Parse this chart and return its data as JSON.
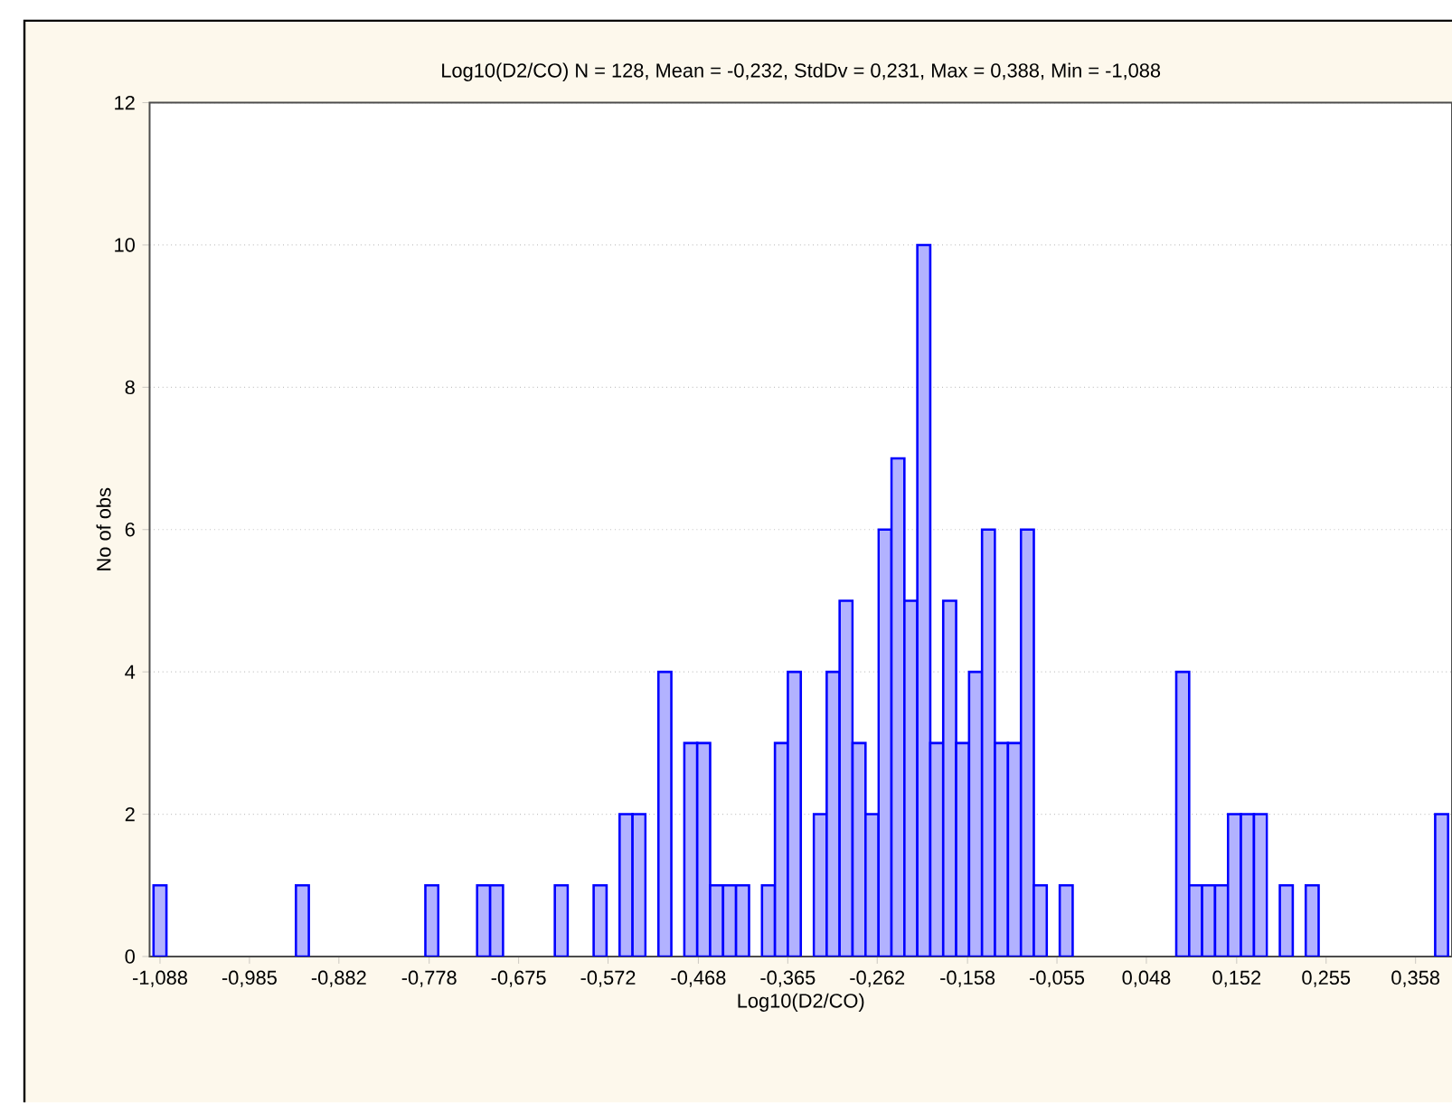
{
  "chart_data": {
    "type": "histogram",
    "title": "Log10(D2/CO)    N = 128, Mean = -0,232, StdDv = 0,231, Max = 0,388, Min = -1,088",
    "xlabel": "Log10(D2/CO)",
    "ylabel": "No of obs",
    "color": "#0000ff",
    "bins": [
      -1.0955,
      -1.0806,
      -1.0657,
      -1.0508,
      -1.0359,
      -1.021,
      -1.006,
      -0.9911,
      -0.9762,
      -0.9613,
      -0.9464,
      -0.9315,
      -0.9166,
      -0.9017,
      -0.8868,
      -0.8719,
      -0.8569,
      -0.842,
      -0.8271,
      -0.8122,
      -0.7973,
      -0.7824,
      -0.7675,
      -0.7526,
      -0.7377,
      -0.7228,
      -0.7078,
      -0.6929,
      -0.678,
      -0.6631,
      -0.6482,
      -0.6333,
      -0.6184,
      -0.6035,
      -0.5886,
      -0.5737,
      -0.5587,
      -0.5438,
      -0.5289,
      -0.514,
      -0.4991,
      -0.4842,
      -0.4693,
      -0.4544,
      -0.4395,
      -0.4246,
      -0.4096,
      -0.3947,
      -0.3798,
      -0.3649,
      -0.35,
      -0.3351,
      -0.3202,
      -0.3053,
      -0.2904,
      -0.2755,
      -0.2605,
      -0.2456,
      -0.2307,
      -0.2158,
      -0.2009,
      -0.186,
      -0.1711,
      -0.1562,
      -0.1413,
      -0.1264,
      -0.1114,
      -0.0965,
      -0.0816,
      -0.0667,
      -0.0518,
      -0.0369,
      -0.022,
      -0.0071,
      0.0078,
      0.0228,
      0.0377,
      0.0526,
      0.0675,
      0.0824,
      0.0973,
      0.1122,
      0.1271,
      0.142,
      0.1569,
      0.1719,
      0.1868,
      0.2017,
      0.2166,
      0.2315,
      0.2464,
      0.2613,
      0.2762,
      0.2911,
      0.306,
      0.321,
      0.3359,
      0.3508,
      0.3657,
      0.3806,
      0.3955
    ],
    "values": [
      1,
      0,
      0,
      0,
      0,
      0,
      0,
      0,
      0,
      0,
      0,
      1,
      0,
      0,
      0,
      0,
      0,
      0,
      0,
      0,
      0,
      1,
      0,
      0,
      0,
      1,
      1,
      0,
      0,
      0,
      0,
      1,
      0,
      0,
      1,
      0,
      2,
      2,
      0,
      4,
      0,
      3,
      3,
      1,
      1,
      1,
      0,
      1,
      3,
      4,
      0,
      2,
      4,
      5,
      3,
      2,
      6,
      7,
      5,
      10,
      3,
      5,
      3,
      4,
      6,
      3,
      3,
      6,
      1,
      0,
      1,
      0,
      0,
      0,
      0,
      0,
      0,
      0,
      0,
      4,
      1,
      1,
      1,
      2,
      2,
      2,
      0,
      1,
      0,
      1,
      0,
      0,
      0,
      0,
      0,
      0,
      0,
      0,
      0,
      2
    ],
    "xlim": [
      -1.1,
      0.4
    ],
    "ylim": [
      0,
      12
    ],
    "xticks": [
      {
        "value": -1.088,
        "label": "-1,088"
      },
      {
        "value": -0.985,
        "label": "-0,985"
      },
      {
        "value": -0.882,
        "label": "-0,882"
      },
      {
        "value": -0.778,
        "label": "-0,778"
      },
      {
        "value": -0.675,
        "label": "-0,675"
      },
      {
        "value": -0.572,
        "label": "-0,572"
      },
      {
        "value": -0.468,
        "label": "-0,468"
      },
      {
        "value": -0.365,
        "label": "-0,365"
      },
      {
        "value": -0.262,
        "label": "-0,262"
      },
      {
        "value": -0.158,
        "label": "-0,158"
      },
      {
        "value": -0.055,
        "label": "-0,055"
      },
      {
        "value": 0.048,
        "label": "0,048"
      },
      {
        "value": 0.152,
        "label": "0,152"
      },
      {
        "value": 0.255,
        "label": "0,255"
      },
      {
        "value": 0.358,
        "label": "0,358"
      }
    ],
    "yticks": [
      0,
      2,
      4,
      6,
      8,
      10,
      12
    ],
    "grid": "y"
  }
}
